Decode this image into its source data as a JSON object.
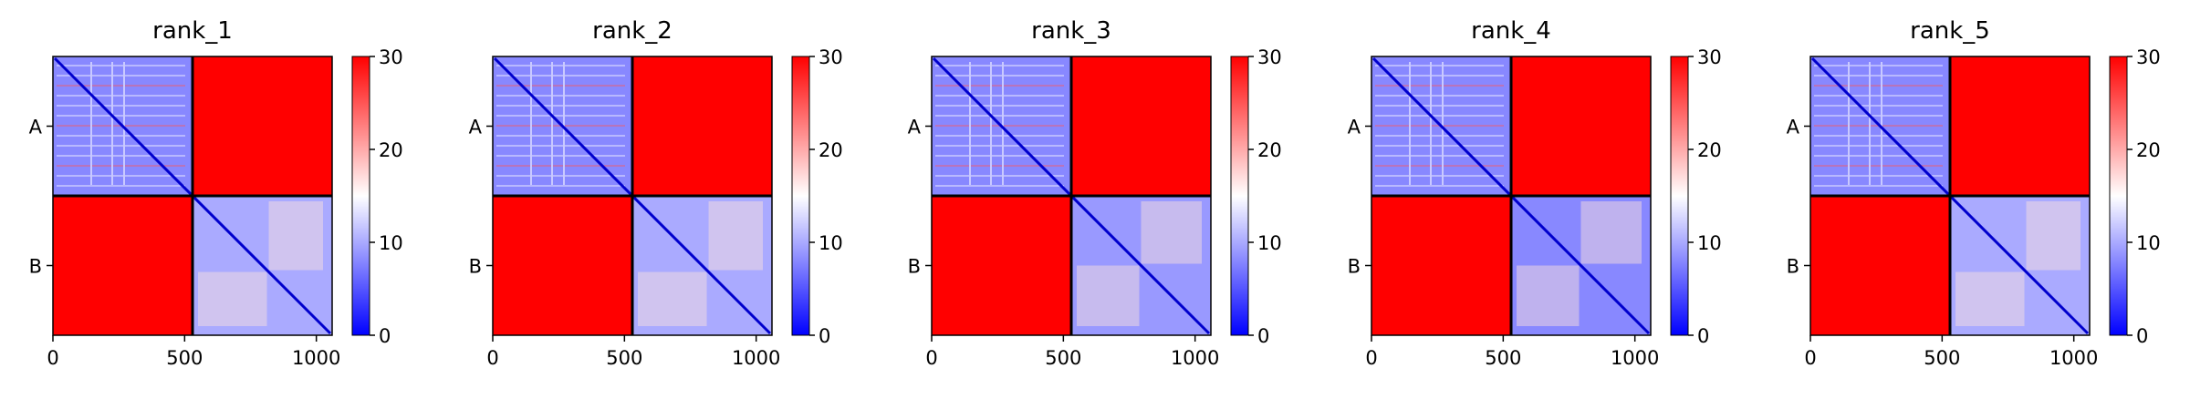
{
  "chart_data": [
    {
      "type": "heatmap",
      "title": "rank_1",
      "xlim": [
        0,
        1060
      ],
      "xticks": [
        0,
        500,
        1000
      ],
      "chain_boundary": 530,
      "yticklabels": [
        "A",
        "B"
      ],
      "colorbar": {
        "min": 0,
        "max": 30,
        "ticks": [
          0,
          10,
          20,
          30
        ],
        "colormap": "bwr"
      },
      "regions": [
        {
          "name": "A-A",
          "approx_value": 8
        },
        {
          "name": "A-B",
          "approx_value": 30
        },
        {
          "name": "B-A",
          "approx_value": 30
        },
        {
          "name": "B-B",
          "approx_value": 10
        }
      ]
    },
    {
      "type": "heatmap",
      "title": "rank_2",
      "xlim": [
        0,
        1060
      ],
      "xticks": [
        0,
        500,
        1000
      ],
      "chain_boundary": 530,
      "yticklabels": [
        "A",
        "B"
      ],
      "colorbar": {
        "min": 0,
        "max": 30,
        "ticks": [
          0,
          10,
          20,
          30
        ],
        "colormap": "bwr"
      },
      "regions": [
        {
          "name": "A-A",
          "approx_value": 8
        },
        {
          "name": "A-B",
          "approx_value": 30
        },
        {
          "name": "B-A",
          "approx_value": 30
        },
        {
          "name": "B-B",
          "approx_value": 10
        }
      ]
    },
    {
      "type": "heatmap",
      "title": "rank_3",
      "xlim": [
        0,
        1060
      ],
      "xticks": [
        0,
        500,
        1000
      ],
      "chain_boundary": 530,
      "yticklabels": [
        "A",
        "B"
      ],
      "colorbar": {
        "min": 0,
        "max": 30,
        "ticks": [
          0,
          10,
          20,
          30
        ],
        "colormap": "bwr"
      },
      "regions": [
        {
          "name": "A-A",
          "approx_value": 8
        },
        {
          "name": "A-B",
          "approx_value": 30
        },
        {
          "name": "B-A",
          "approx_value": 30
        },
        {
          "name": "B-B",
          "approx_value": 9
        }
      ]
    },
    {
      "type": "heatmap",
      "title": "rank_4",
      "xlim": [
        0,
        1060
      ],
      "xticks": [
        0,
        500,
        1000
      ],
      "chain_boundary": 530,
      "yticklabels": [
        "A",
        "B"
      ],
      "colorbar": {
        "min": 0,
        "max": 30,
        "ticks": [
          0,
          10,
          20,
          30
        ],
        "colormap": "bwr"
      },
      "regions": [
        {
          "name": "A-A",
          "approx_value": 8
        },
        {
          "name": "A-B",
          "approx_value": 30
        },
        {
          "name": "B-A",
          "approx_value": 30
        },
        {
          "name": "B-B",
          "approx_value": 8
        }
      ]
    },
    {
      "type": "heatmap",
      "title": "rank_5",
      "xlim": [
        0,
        1060
      ],
      "xticks": [
        0,
        500,
        1000
      ],
      "chain_boundary": 530,
      "yticklabels": [
        "A",
        "B"
      ],
      "colorbar": {
        "min": 0,
        "max": 30,
        "ticks": [
          0,
          10,
          20,
          30
        ],
        "colormap": "bwr"
      },
      "regions": [
        {
          "name": "A-A",
          "approx_value": 8
        },
        {
          "name": "A-B",
          "approx_value": 30
        },
        {
          "name": "B-A",
          "approx_value": 30
        },
        {
          "name": "B-B",
          "approx_value": 10
        }
      ]
    }
  ]
}
